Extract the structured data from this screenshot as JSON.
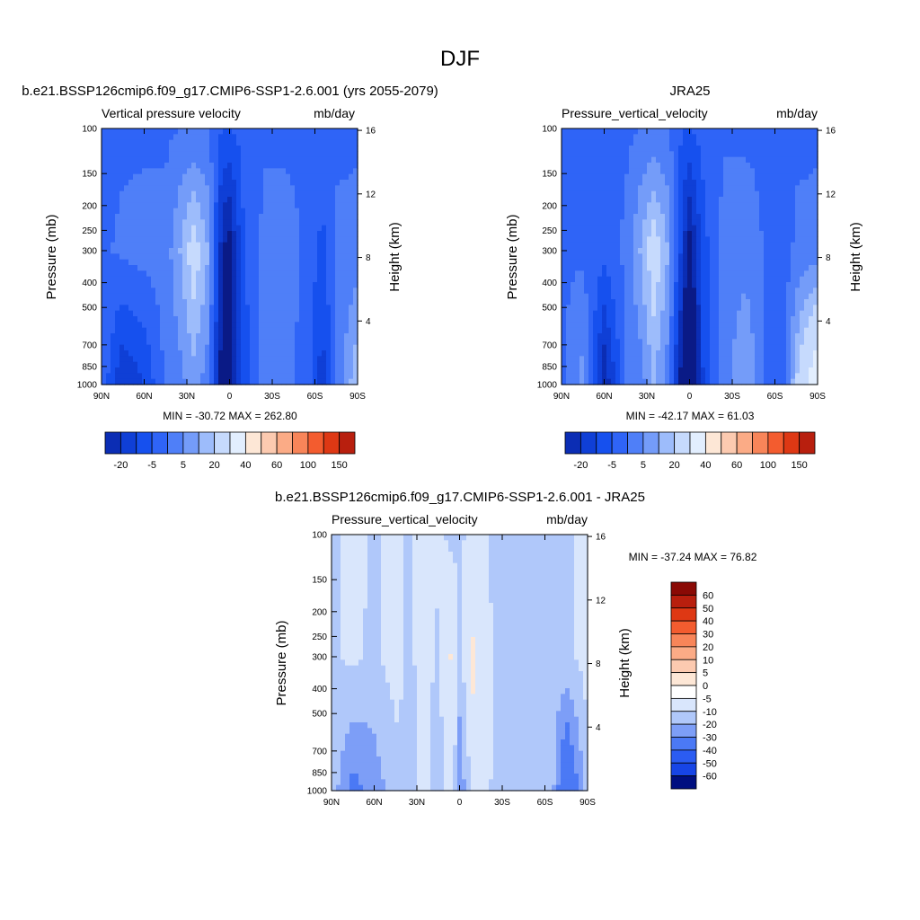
{
  "page": {
    "title": "DJF"
  },
  "colors": {
    "blue_scale": [
      "#0a1a86",
      "#0b2db4",
      "#0f3fd6",
      "#1650ee",
      "#2f64f7",
      "#4f7ff8",
      "#749cf9",
      "#9dbcfb",
      "#c6dafd",
      "#e2eefe"
    ],
    "red_scale": [
      "#fde7d6",
      "#fccab0",
      "#fbab86",
      "#f88559",
      "#f35c2f",
      "#de3814",
      "#b81f0e",
      "#8a0a05"
    ],
    "neutral": "#ffffff"
  },
  "chart_data": [
    {
      "type": "heatmap",
      "title": "b.e21.BSSP126cmip6.f09_g17.CMIP6-SSP1-2.6.001 (yrs 2055-2079)",
      "left_label": "Vertical pressure velocity",
      "right_label": "mb/day",
      "ylabel": "Pressure (mb)",
      "ylabel_right": "Height (km)",
      "x_ticks": [
        "90N",
        "60N",
        "30N",
        "0",
        "30S",
        "60S",
        "90S"
      ],
      "y_ticks": [
        100,
        150,
        200,
        250,
        300,
        400,
        500,
        700,
        850,
        1000
      ],
      "ylim": [
        1000,
        100
      ],
      "y_scale": "log",
      "height_ticks": [
        4,
        8,
        12,
        16
      ],
      "stats": "MIN = -30.72  MAX = 262.80",
      "colorbar": {
        "orientation": "horizontal",
        "labels": [
          "-20",
          "-5",
          "5",
          "20",
          "40",
          "60",
          "100",
          "150"
        ]
      },
      "columns": [
        {
          "lat": 90,
          "p100": -6,
          "p300": -6,
          "p1000": -6
        },
        {
          "lat": 75,
          "p100": -6,
          "p300": -4,
          "p1000": -20
        },
        {
          "lat": 60,
          "p100": -6,
          "p300": -3,
          "p1000": -15
        },
        {
          "lat": 45,
          "p100": -6,
          "p300": -3,
          "p1000": -4
        },
        {
          "lat": 35,
          "p100": -5,
          "p300": 5,
          "p1000": -2
        },
        {
          "lat": 25,
          "p100": -5,
          "p300": 14,
          "p1000": 3
        },
        {
          "lat": 15,
          "p100": -5,
          "p300": 5,
          "p1000": -3
        },
        {
          "lat": 5,
          "p100": -10,
          "p300": -25,
          "p1000": -30
        },
        {
          "lat": 0,
          "p100": -10,
          "p300": -28,
          "p1000": -30
        },
        {
          "lat": -10,
          "p100": -8,
          "p300": -10,
          "p1000": -14
        },
        {
          "lat": -25,
          "p100": -6,
          "p300": -3,
          "p1000": -2
        },
        {
          "lat": -40,
          "p100": -6,
          "p300": -3,
          "p1000": -3
        },
        {
          "lat": -55,
          "p100": -6,
          "p300": -6,
          "p1000": -8
        },
        {
          "lat": -65,
          "p100": -6,
          "p300": -12,
          "p1000": -18
        },
        {
          "lat": -75,
          "p100": -6,
          "p300": -4,
          "p1000": -5
        },
        {
          "lat": -90,
          "p100": -6,
          "p300": -3,
          "p1000": 10
        }
      ]
    },
    {
      "type": "heatmap",
      "title": "JRA25",
      "left_label": "Pressure_vertical_velocity",
      "right_label": "mb/day",
      "ylabel": "Pressure (mb)",
      "ylabel_right": "Height (km)",
      "x_ticks": [
        "90N",
        "60N",
        "30N",
        "0",
        "30S",
        "60S",
        "90S"
      ],
      "y_ticks": [
        100,
        150,
        200,
        250,
        300,
        400,
        500,
        700,
        850,
        1000
      ],
      "ylim": [
        1000,
        100
      ],
      "y_scale": "log",
      "height_ticks": [
        4,
        8,
        12,
        16
      ],
      "stats": "MIN = -42.17  MAX =  61.03",
      "colorbar": {
        "orientation": "horizontal",
        "labels": [
          "-20",
          "-5",
          "5",
          "20",
          "40",
          "60",
          "100",
          "150"
        ]
      },
      "columns": [
        {
          "lat": 90,
          "p100": -6,
          "p300": -6,
          "p1000": -6
        },
        {
          "lat": 75,
          "p100": -6,
          "p300": -6,
          "p1000": 2
        },
        {
          "lat": 60,
          "p100": -6,
          "p300": -8,
          "p1000": -25
        },
        {
          "lat": 45,
          "p100": -6,
          "p300": -4,
          "p1000": -5
        },
        {
          "lat": 35,
          "p100": -5,
          "p300": 5,
          "p1000": -3
        },
        {
          "lat": 25,
          "p100": -5,
          "p300": 15,
          "p1000": 5
        },
        {
          "lat": 15,
          "p100": -5,
          "p300": 5,
          "p1000": -3
        },
        {
          "lat": 5,
          "p100": -10,
          "p300": -18,
          "p1000": -30
        },
        {
          "lat": 0,
          "p100": -10,
          "p300": -28,
          "p1000": -38
        },
        {
          "lat": -10,
          "p100": -8,
          "p300": -12,
          "p1000": -14
        },
        {
          "lat": -25,
          "p100": -6,
          "p300": -2,
          "p1000": -2
        },
        {
          "lat": -40,
          "p100": -6,
          "p300": -2,
          "p1000": 5
        },
        {
          "lat": -55,
          "p100": -6,
          "p300": -6,
          "p1000": -6
        },
        {
          "lat": -65,
          "p100": -6,
          "p300": -8,
          "p1000": -10
        },
        {
          "lat": -75,
          "p100": -6,
          "p300": -4,
          "p1000": 10
        },
        {
          "lat": -90,
          "p100": -6,
          "p300": -3,
          "p1000": 30
        }
      ]
    },
    {
      "type": "heatmap",
      "title": "b.e21.BSSP126cmip6.f09_g17.CMIP6-SSP1-2.6.001 - JRA25",
      "left_label": "Pressure_vertical_velocity",
      "right_label": "mb/day",
      "ylabel": "Pressure (mb)",
      "ylabel_right": "Height (km)",
      "x_ticks": [
        "90N",
        "60N",
        "30N",
        "0",
        "30S",
        "60S",
        "90S"
      ],
      "y_ticks": [
        100,
        150,
        200,
        250,
        300,
        400,
        500,
        700,
        850,
        1000
      ],
      "ylim": [
        1000,
        100
      ],
      "y_scale": "log",
      "height_ticks": [
        4,
        8,
        12,
        16
      ],
      "stats": "MIN = -37.24  MAX =  76.82",
      "colorbar": {
        "orientation": "vertical",
        "labels": [
          "60",
          "50",
          "40",
          "30",
          "20",
          "10",
          "5",
          "0",
          "-5",
          "-10",
          "-20",
          "-30",
          "-40",
          "-50",
          "-60"
        ]
      },
      "columns": [
        {
          "lat": 90,
          "p100": -1,
          "p300": -1,
          "p1000": -2
        },
        {
          "lat": 75,
          "p100": 2,
          "p300": 1,
          "p1000": -12
        },
        {
          "lat": 60,
          "p100": -1,
          "p300": -1,
          "p1000": -8
        },
        {
          "lat": 45,
          "p100": 2,
          "p300": 2,
          "p1000": -2
        },
        {
          "lat": 35,
          "p100": -1,
          "p300": -1,
          "p1000": -1
        },
        {
          "lat": 25,
          "p100": 2,
          "p300": 2,
          "p1000": 1
        },
        {
          "lat": 15,
          "p100": 1,
          "p300": -1,
          "p1000": -2
        },
        {
          "lat": 5,
          "p100": -1,
          "p300": 6,
          "p1000": 3
        },
        {
          "lat": 0,
          "p100": -1,
          "p300": -1,
          "p1000": -10
        },
        {
          "lat": -10,
          "p100": 2,
          "p300": 6,
          "p1000": 4
        },
        {
          "lat": -25,
          "p100": -1,
          "p300": -1,
          "p1000": -1
        },
        {
          "lat": -40,
          "p100": -1,
          "p300": -1,
          "p1000": -1
        },
        {
          "lat": -55,
          "p100": -1,
          "p300": -1,
          "p1000": -1
        },
        {
          "lat": -65,
          "p100": -1,
          "p300": -1,
          "p1000": -3
        },
        {
          "lat": -75,
          "p100": -1,
          "p300": -1,
          "p1000": -20
        },
        {
          "lat": -90,
          "p100": 2,
          "p300": 2,
          "p1000": -2
        }
      ]
    }
  ]
}
